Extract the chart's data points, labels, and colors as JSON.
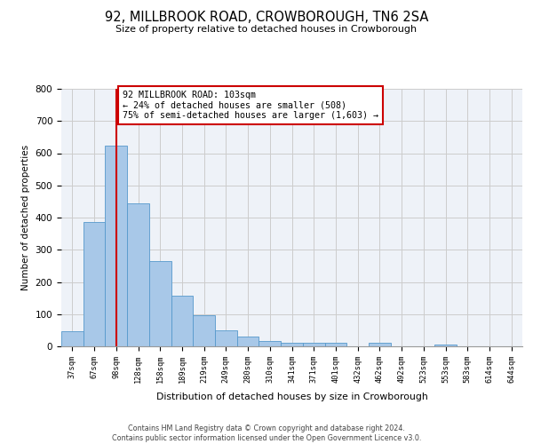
{
  "title": "92, MILLBROOK ROAD, CROWBOROUGH, TN6 2SA",
  "subtitle": "Size of property relative to detached houses in Crowborough",
  "xlabel": "Distribution of detached houses by size in Crowborough",
  "ylabel": "Number of detached properties",
  "bin_labels": [
    "37sqm",
    "67sqm",
    "98sqm",
    "128sqm",
    "158sqm",
    "189sqm",
    "219sqm",
    "249sqm",
    "280sqm",
    "310sqm",
    "341sqm",
    "371sqm",
    "401sqm",
    "432sqm",
    "462sqm",
    "492sqm",
    "523sqm",
    "553sqm",
    "583sqm",
    "614sqm",
    "644sqm"
  ],
  "bar_heights": [
    48,
    385,
    623,
    443,
    265,
    157,
    97,
    51,
    30,
    17,
    10,
    10,
    10,
    0,
    10,
    0,
    0,
    5,
    0,
    0,
    0
  ],
  "bar_color": "#a8c8e8",
  "bar_edge_color": "#5599cc",
  "vline_x": 2,
  "vline_color": "#cc0000",
  "annotation_text": "92 MILLBROOK ROAD: 103sqm\n← 24% of detached houses are smaller (508)\n75% of semi-detached houses are larger (1,603) →",
  "annotation_box_color": "#ffffff",
  "annotation_box_edge_color": "#cc0000",
  "ylim": [
    0,
    800
  ],
  "yticks": [
    0,
    100,
    200,
    300,
    400,
    500,
    600,
    700,
    800
  ],
  "footer_text": "Contains HM Land Registry data © Crown copyright and database right 2024.\nContains public sector information licensed under the Open Government Licence v3.0.",
  "background_color": "#ffffff",
  "grid_color": "#cccccc",
  "ax_facecolor": "#eef2f8"
}
